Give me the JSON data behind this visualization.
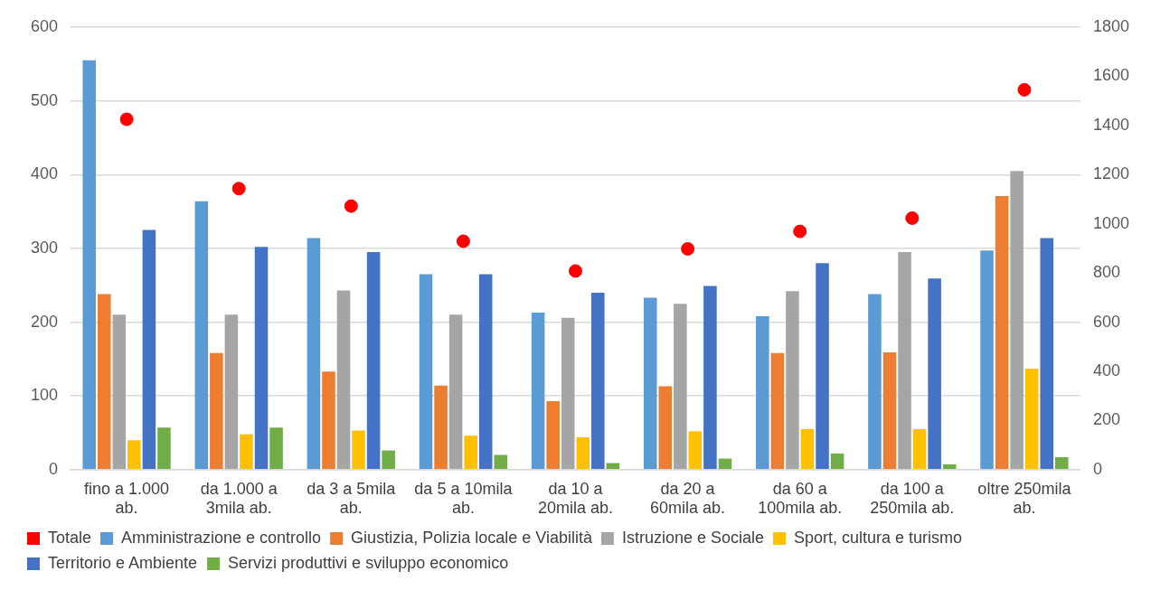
{
  "chart_data": {
    "type": "bar",
    "categories": [
      "fino a 1.000 ab.",
      "da 1.000 a 3mila ab.",
      "da 3 a 5mila ab.",
      "da 5 a 10mila ab.",
      "da 10 a 20mila ab.",
      "da 20 a 60mila ab.",
      "da 60 a 100mila ab.",
      "da 100 a 250mila ab.",
      "oltre 250mila ab."
    ],
    "series": [
      {
        "name": "Amministrazione e controllo",
        "color": "#5b9bd5",
        "values": [
          555,
          364,
          314,
          265,
          213,
          233,
          208,
          238,
          297
        ]
      },
      {
        "name": "Giustizia, Polizia locale e Viabilità",
        "color": "#ed7d31",
        "values": [
          238,
          158,
          133,
          114,
          93,
          113,
          158,
          159,
          371
        ]
      },
      {
        "name": "Istruzione e Sociale",
        "color": "#a5a5a5",
        "values": [
          210,
          210,
          243,
          210,
          206,
          225,
          242,
          295,
          405
        ]
      },
      {
        "name": "Sport, cultura e turismo",
        "color": "#ffc000",
        "values": [
          40,
          48,
          53,
          46,
          44,
          52,
          55,
          55,
          137
        ]
      },
      {
        "name": "Territorio e Ambiente",
        "color": "#4472c4",
        "values": [
          325,
          302,
          295,
          265,
          240,
          249,
          280,
          259,
          314
        ]
      },
      {
        "name": "Servizi produttivi e sviluppo economico",
        "color": "#70ad47",
        "values": [
          57,
          57,
          26,
          20,
          9,
          15,
          22,
          7,
          17
        ]
      },
      {
        "name": "Totale",
        "type": "scatter",
        "axis": "y2",
        "color": "#ff0000",
        "values": [
          1425,
          1143,
          1072,
          929,
          808,
          898,
          969,
          1023,
          1545
        ]
      }
    ],
    "ylim": [
      0,
      600
    ],
    "yticks": [
      0,
      100,
      200,
      300,
      400,
      500,
      600
    ],
    "y2lim": [
      0,
      1800
    ],
    "y2ticks": [
      0,
      200,
      400,
      600,
      800,
      1000,
      1200,
      1400,
      1600,
      1800
    ],
    "grid": "y",
    "legend": "bottom",
    "marker": "circle"
  }
}
